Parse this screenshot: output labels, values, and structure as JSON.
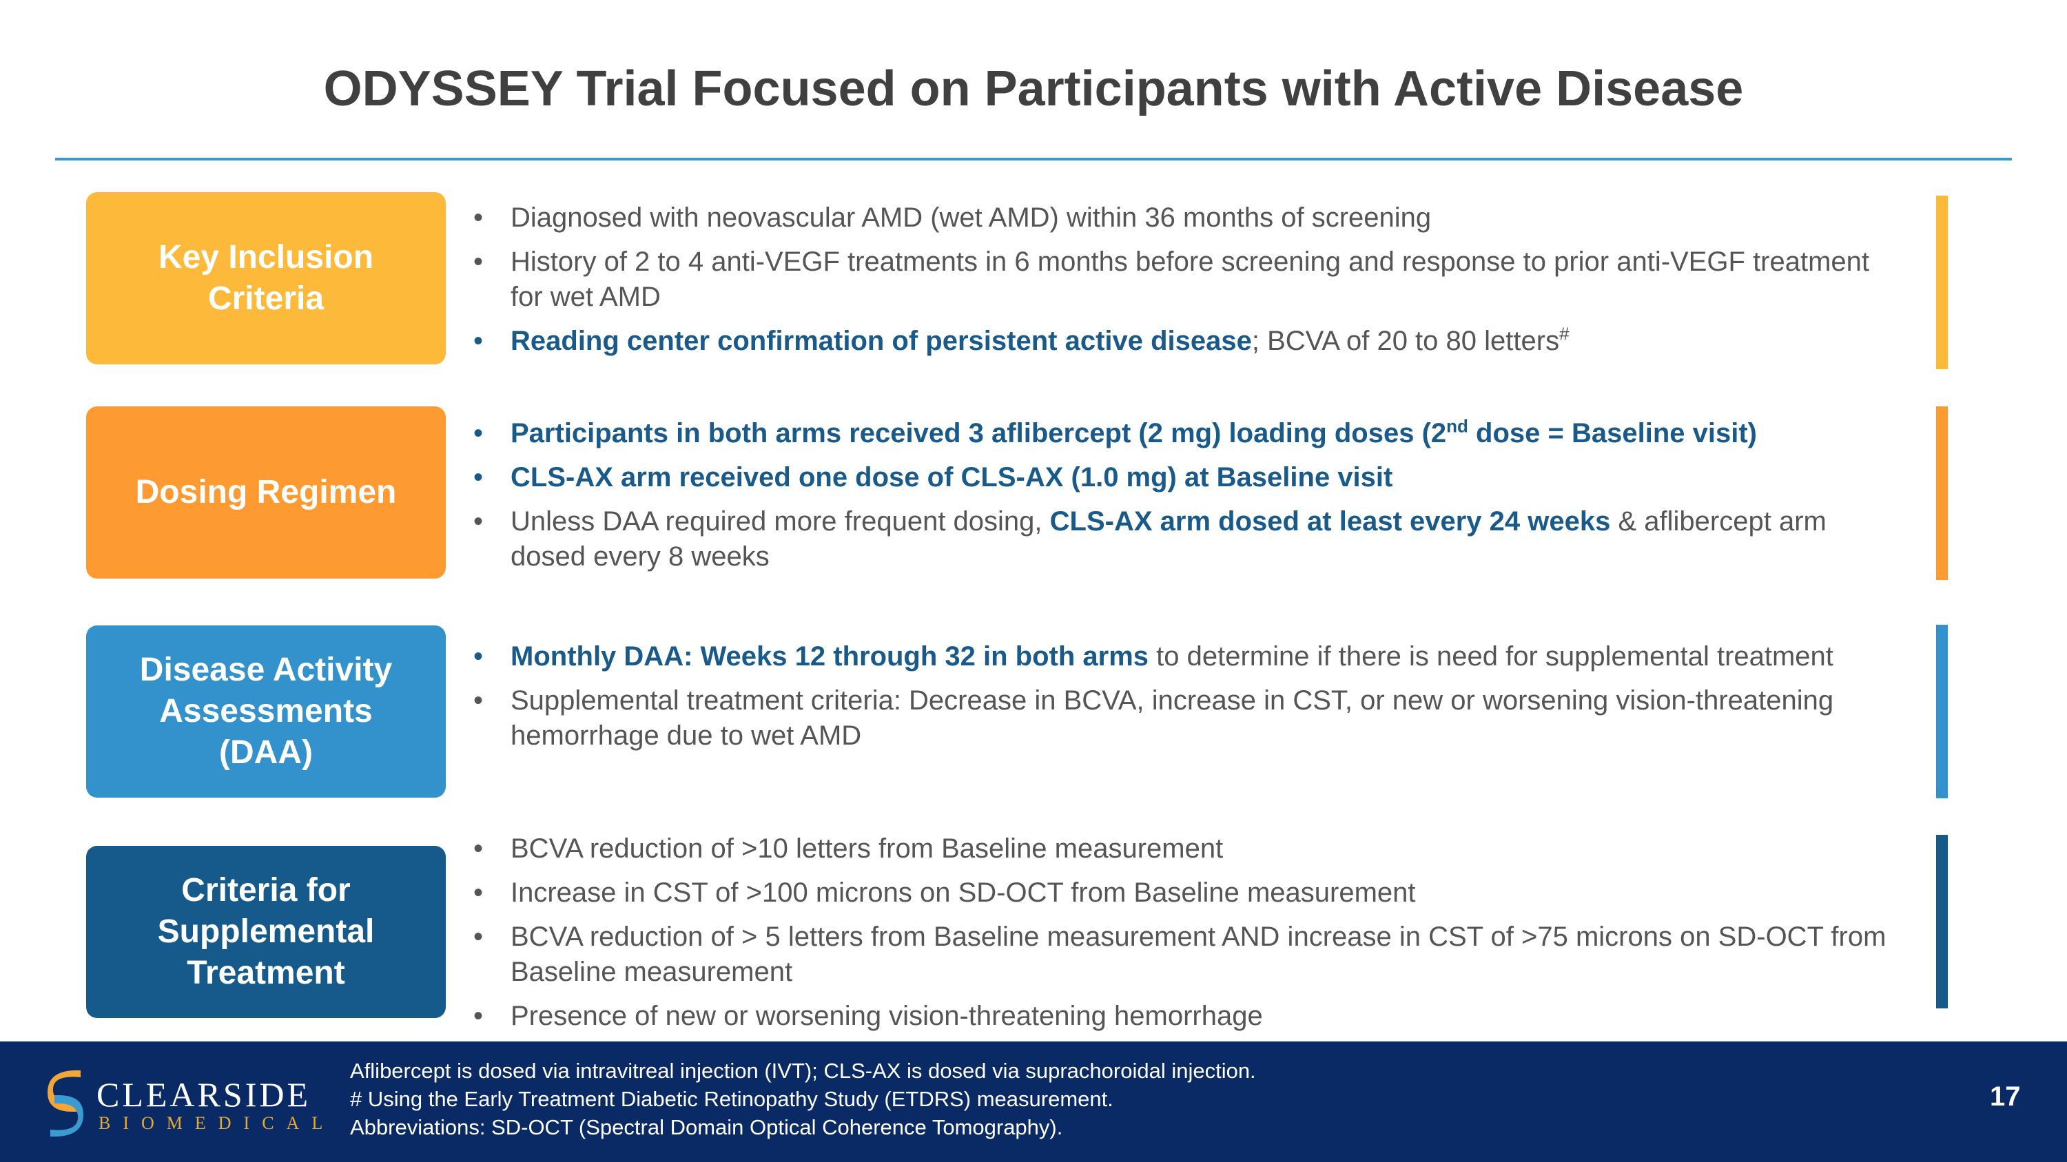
{
  "title": "ODYSSEY Trial Focused on Participants with Active Disease",
  "colors": {
    "accent_rule": "#3b9bd1",
    "highlight_text": "#1a5a8a",
    "footer_bg": "#0a2a66"
  },
  "sections": [
    {
      "label": "Key Inclusion\nCriteria",
      "color": "#fdb93a",
      "bullets": [
        {
          "pre": "Diagnosed with neovascular AMD (wet AMD) within 36 months of screening"
        },
        {
          "pre": "History of 2 to 4 anti-VEGF treatments in 6 months before screening and response to prior anti-VEGF treatment for wet AMD"
        },
        {
          "bold": "Reading center confirmation of persistent active disease",
          "post": "; BCVA of 20 to 80 letters",
          "sup": "#"
        }
      ]
    },
    {
      "label": "Dosing Regimen",
      "color": "#fe9a32",
      "bullets": [
        {
          "bold": "Participants in both arms received 3 aflibercept (2 mg) loading doses (2",
          "bold_sup": "nd",
          "bold2": " dose = Baseline visit)"
        },
        {
          "bold": "CLS-AX arm received one dose of CLS-AX (1.0 mg) at Baseline visit"
        },
        {
          "pre": "Unless DAA required more frequent dosing, ",
          "bold": "CLS-AX arm dosed at least every 24 weeks",
          "post": " & aflibercept arm dosed every 8 weeks"
        }
      ]
    },
    {
      "label": "Disease Activity\nAssessments\n(DAA)",
      "color": "#3391cc",
      "bullets": [
        {
          "bold": "Monthly DAA: Weeks 12 through 32 in both arms",
          "post": " to determine if there is need for supplemental treatment"
        },
        {
          "pre": "Supplemental treatment criteria: Decrease in BCVA, increase in CST, or new or worsening vision-threatening hemorrhage due to wet AMD"
        }
      ]
    },
    {
      "label": "Criteria for\nSupplemental\nTreatment",
      "color": "#155a8a",
      "bullets": [
        {
          "pre": "BCVA reduction of >10 letters from Baseline measurement"
        },
        {
          "pre": "Increase in CST of >100 microns on SD-OCT from Baseline measurement"
        },
        {
          "pre": "BCVA reduction of > 5 letters from Baseline measurement AND increase in CST of >75 microns on SD-OCT from Baseline measurement"
        },
        {
          "pre": "Presence of new or worsening vision-threatening hemorrhage"
        }
      ]
    }
  ],
  "footer": {
    "logo_word1": "CLEARSIDE",
    "logo_word2": "BIOMEDICAL",
    "notes": [
      "Aflibercept is dosed via intravitreal injection (IVT); CLS-AX is dosed via suprachoroidal injection.",
      "# Using the Early Treatment Diabetic Retinopathy Study (ETDRS) measurement.",
      "Abbreviations: SD-OCT (Spectral Domain Optical Coherence Tomography)."
    ],
    "page_number": "17"
  }
}
